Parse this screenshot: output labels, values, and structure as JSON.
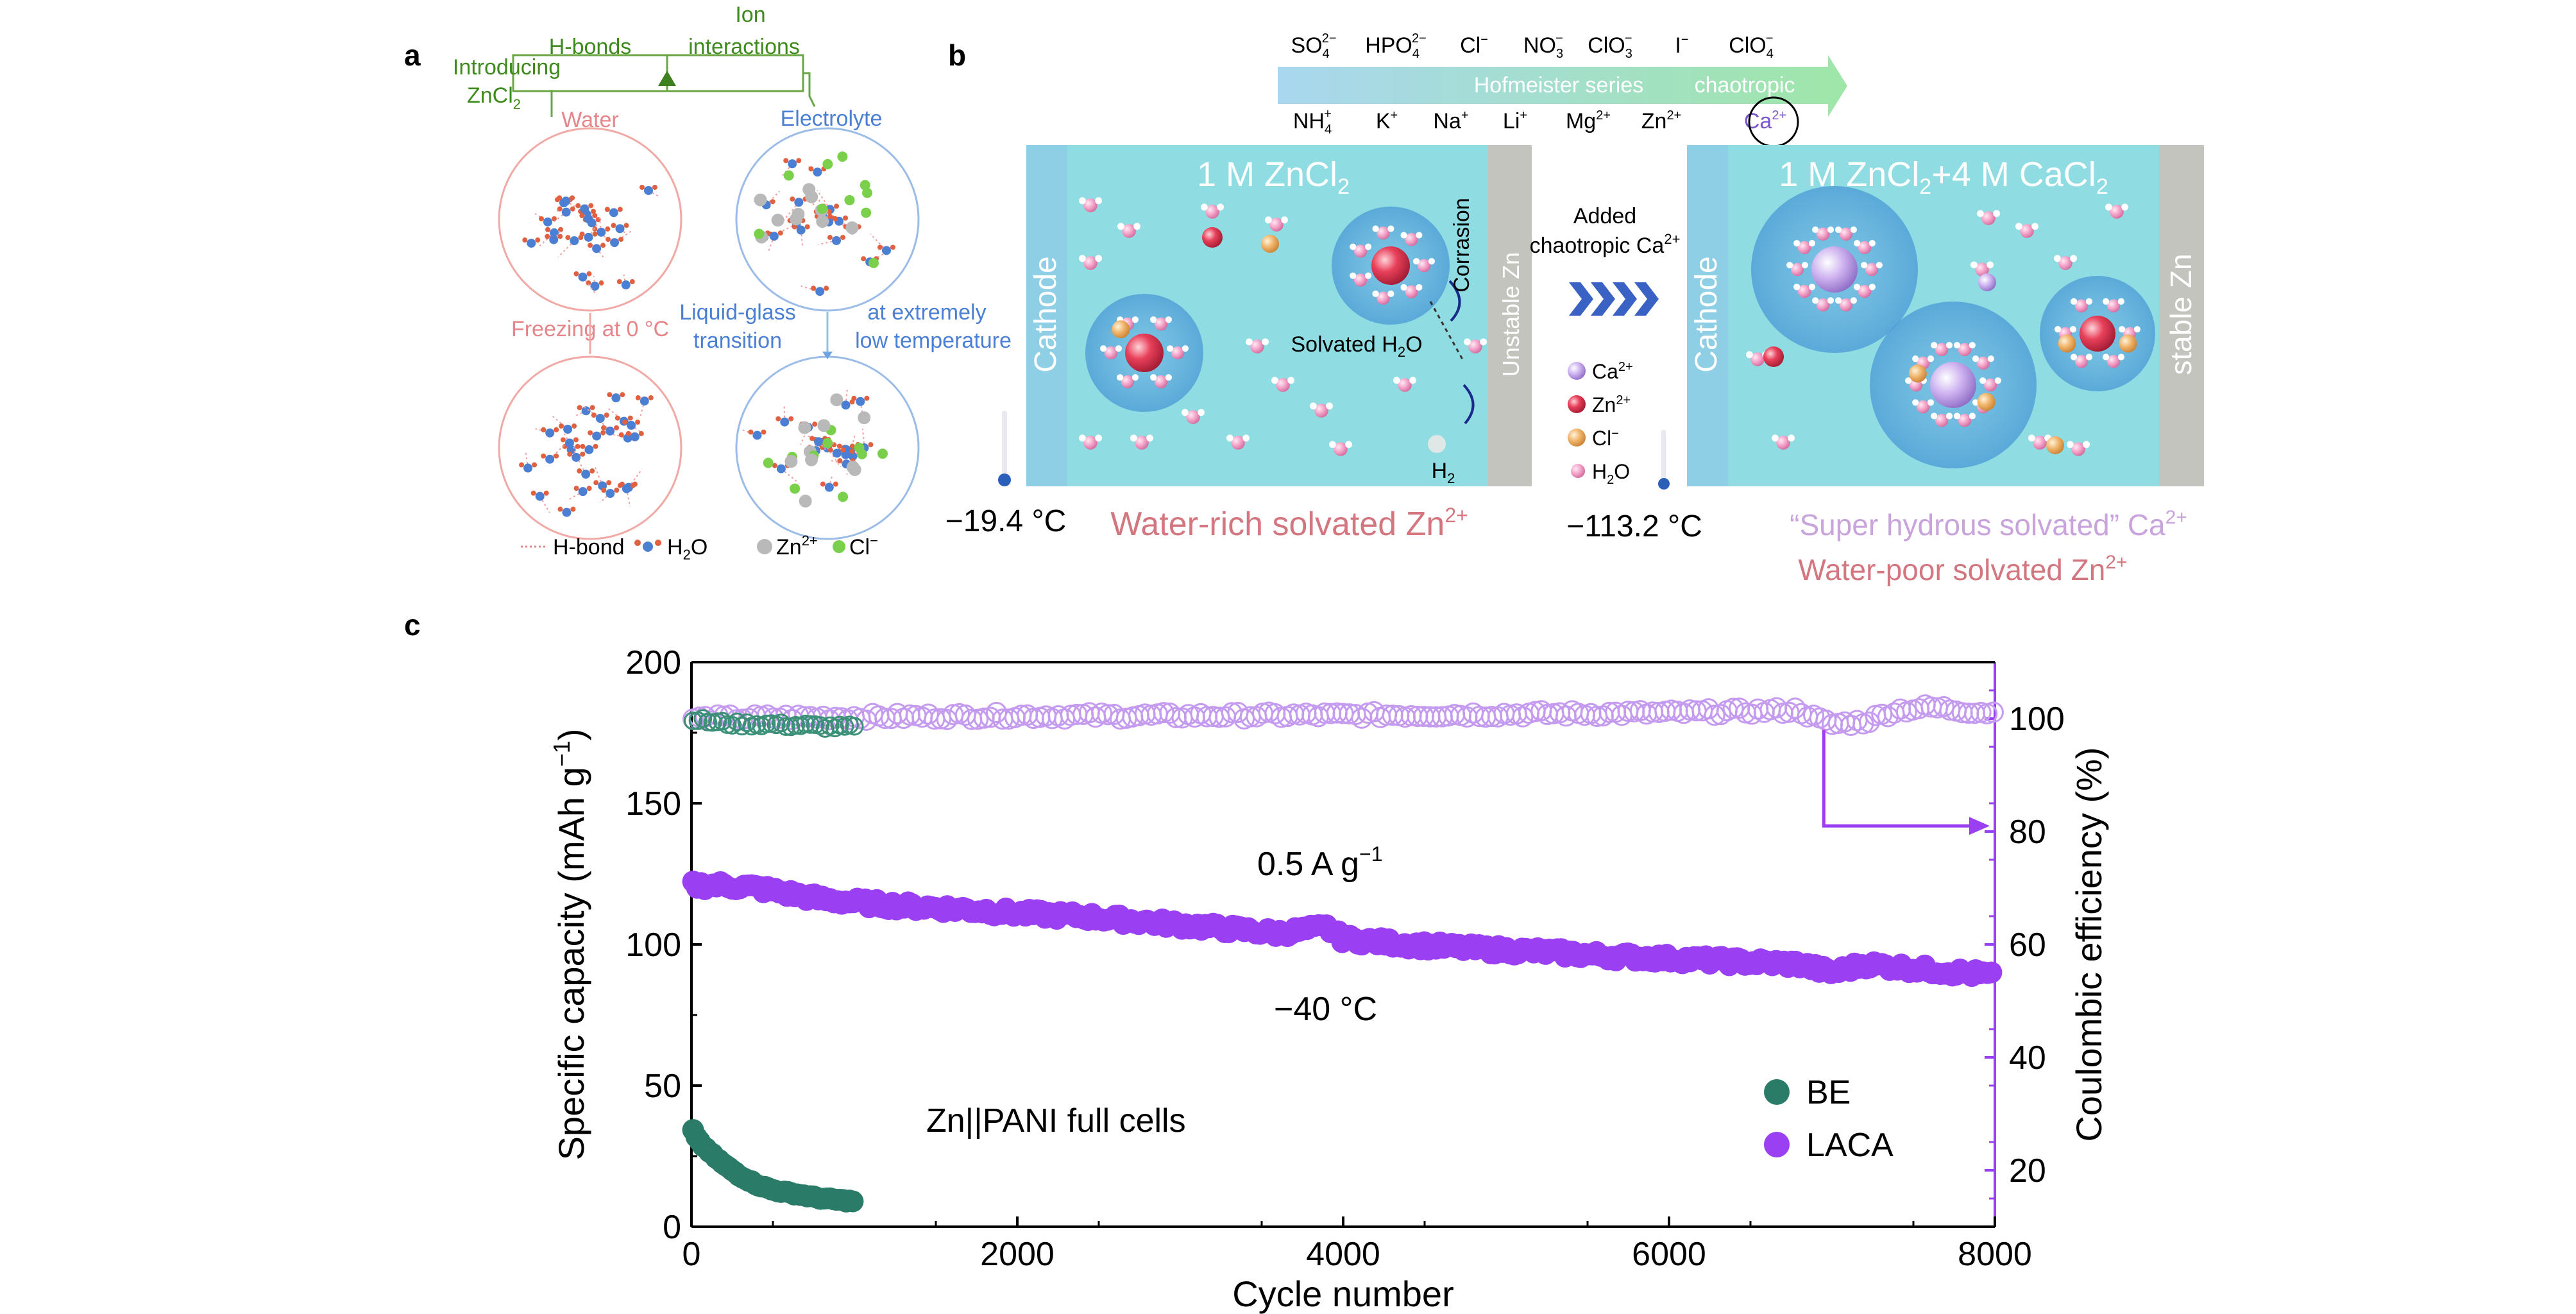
{
  "panels": {
    "a": {
      "letter": "a",
      "introducing": "Introducing",
      "zncl2": "ZnCl",
      "zncl2_sub": "2",
      "hbonds": "H-bonds",
      "ion_interactions_1": "Ion",
      "ion_interactions_2": "interactions",
      "water": "Water",
      "electrolyte": "Electrolyte",
      "freezing": "Freezing at 0 °C",
      "liquid_glass_1": "Liquid-glass",
      "liquid_glass_2": "transition",
      "extreme_1": "at extremely",
      "extreme_2": "low temperature",
      "legend_hbond": "H-bond",
      "legend_h2o": "H",
      "legend_h2o_sub": "2",
      "legend_h2o_tail": "O",
      "legend_zn": "Zn",
      "legend_zn_sup": "2+",
      "legend_cl": "Cl",
      "legend_cl_sup": "−"
    },
    "b": {
      "letter": "b",
      "anions": [
        "SO",
        "HPO",
        "Cl",
        "NO",
        "ClO",
        "I",
        "ClO"
      ],
      "anion_subs": [
        "4",
        "4",
        "",
        "3",
        "3",
        "",
        "4"
      ],
      "anion_sups": [
        "2−",
        "2−",
        "−",
        "−",
        "−",
        "−",
        "−"
      ],
      "cations": [
        "NH",
        "K",
        "Na",
        "Li",
        "Mg",
        "Zn",
        "Ca"
      ],
      "cation_subs": [
        "4",
        "",
        "",
        "",
        "",
        "",
        ""
      ],
      "cation_sups": [
        "+",
        "+",
        "+",
        "+",
        "2+",
        "2+",
        "2+"
      ],
      "hofmeister": "Hofmeister series",
      "chaotropic": "chaotropic",
      "left_box_title": "1 M ZnCl",
      "left_box_title_sub": "2",
      "cathode": "Cathode",
      "unstable_zn": "Unstable Zn",
      "corrosion": "Corrasion",
      "solvated_h2o": "Solvated H",
      "solvated_h2o_sub": "2",
      "solvated_h2o_tail": "O",
      "h2": "H",
      "h2_sub": "2",
      "temp_left": "−19.4 °C",
      "water_rich": "Water-rich solvated Zn",
      "water_rich_sup": "2+",
      "added_1": "Added",
      "added_2": "chaotropic Ca",
      "added_2_sup": "2+",
      "legend_ca": "Ca",
      "legend_ca_sup": "2+",
      "legend_zn": "Zn",
      "legend_zn_sup": "2+",
      "legend_cl": "Cl",
      "legend_cl_sup": "−",
      "legend_h2o": "H",
      "legend_h2o_sub": "2",
      "legend_h2o_tail": "O",
      "temp_right": "−113.2 °C",
      "right_box_title": "1 M ZnCl",
      "right_box_title_sub": "2",
      "right_box_title_tail": "+4 M CaCl",
      "right_box_title_sub2": "2",
      "stable_zn": "stable Zn",
      "super_hydrous": "“Super hydrous solvated” Ca",
      "super_hydrous_sup": "2+",
      "water_poor": "Water-poor solvated Zn",
      "water_poor_sup": "2+",
      "colors": {
        "box_fill": "#8fdde2",
        "cathode_fill": "#8ecfe6",
        "zn_fill": "#c3c4bd",
        "pink_text": "#d4767f",
        "lilac_text": "#c9a3dc"
      }
    },
    "c": {
      "letter": "c",
      "annotation_rate": "0.5 A g",
      "annotation_rate_sup": "−1",
      "annotation_temp": "−40 °C",
      "annotation_cell": "Zn||PANI full cells"
    }
  },
  "chart_data": {
    "type": "scatter",
    "xlabel": "Cycle number",
    "ylabel": "Specific capacity (mAh g",
    "ylabel_sup": "−1",
    "ylabel_tail": ")",
    "y2label": "Coulombic efficiency (%)",
    "xlim": [
      0,
      8000
    ],
    "ylim": [
      0,
      200
    ],
    "y2lim": [
      10,
      110
    ],
    "xticks": [
      0,
      2000,
      4000,
      6000,
      8000
    ],
    "yticks": [
      0,
      50,
      100,
      150,
      200
    ],
    "y2ticks": [
      20,
      40,
      60,
      80,
      100
    ],
    "legend_position": "lower-right",
    "series": [
      {
        "name": "BE",
        "color": "#2a7b68",
        "capacity": {
          "x": [
            10,
            40,
            80,
            120,
            160,
            200,
            250,
            300,
            350,
            400,
            450,
            500,
            550,
            600,
            650,
            700,
            750,
            800,
            850,
            900,
            950,
            1000
          ],
          "y": [
            34,
            31,
            28,
            26,
            24,
            22,
            20,
            18,
            16.5,
            15,
            14,
            13,
            12.5,
            12,
            11.5,
            11,
            10.5,
            10,
            9.8,
            9.5,
            9.2,
            9
          ]
        },
        "efficiency": {
          "x": [
            10,
            100,
            200,
            300,
            400,
            500,
            600,
            700,
            800,
            900,
            1000
          ],
          "y": [
            100,
            99.5,
            99.2,
            99,
            99,
            99,
            98.8,
            98.8,
            98.6,
            98.5,
            98.5
          ]
        }
      },
      {
        "name": "LACA",
        "color": "#9b3ff2",
        "capacity": {
          "x": [
            10,
            200,
            400,
            600,
            800,
            1000,
            1200,
            1500,
            1800,
            2000,
            2400,
            2800,
            3200,
            3600,
            3900,
            4000,
            4400,
            4800,
            5200,
            5600,
            6000,
            6400,
            6800,
            7000,
            7200,
            7400,
            7600,
            7800,
            8000
          ],
          "y": [
            121,
            121,
            120,
            118,
            116,
            115,
            114,
            113,
            112,
            111,
            110,
            108,
            106,
            104,
            106,
            102,
            100,
            98.5,
            97.5,
            96,
            95,
            94,
            93,
            90,
            93,
            92,
            91,
            90,
            89
          ]
        },
        "efficiency": {
          "x": [
            10,
            500,
            1000,
            2000,
            3000,
            4000,
            5000,
            6000,
            6800,
            6900,
            7000,
            7200,
            7400,
            7600,
            7800,
            8000
          ],
          "y": [
            100,
            100.2,
            100.3,
            100.5,
            100.5,
            100.6,
            100.8,
            101,
            101.5,
            100,
            99,
            99.5,
            101.5,
            102,
            101.5,
            101
          ]
        }
      }
    ]
  }
}
